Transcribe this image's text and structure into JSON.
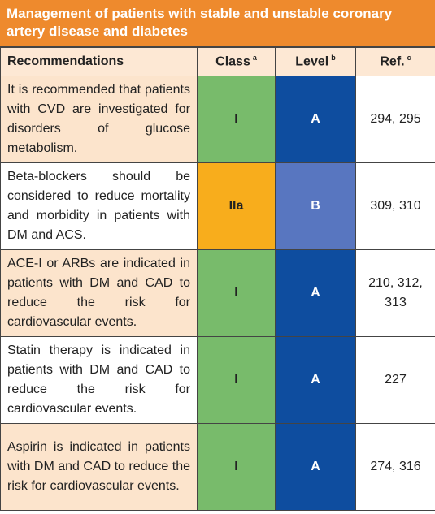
{
  "title": "Management of patients with stable and unstable coronary artery disease and diabetes",
  "table": {
    "header": [
      {
        "text": "Recommendations"
      },
      {
        "text": "Class",
        "note": "a"
      },
      {
        "text": "Level",
        "note": "b"
      },
      {
        "text": "Ref.",
        "note": "c"
      }
    ],
    "rows": [
      [
        "It is recommended that patients with CVD are investigated for disorders of glucose metabolism.",
        "I",
        "A",
        "294, 295"
      ],
      [
        "Beta-blockers should be considered to reduce mortality and morbidity in patients with DM and ACS.",
        "IIa",
        "B",
        "309, 310"
      ],
      [
        "ACE-I or ARBs are indicated in patients with DM and CAD to reduce the risk for cardiovascular events.",
        "I",
        "A",
        "210, 312, 313"
      ],
      [
        "Statin therapy is indicated in patients with DM and CAD to reduce the risk for cardiovascular events.",
        "I",
        "A",
        "227"
      ],
      [
        "Aspirin is indicated in patients with DM and CAD to reduce the risk for cardiovascular events.",
        "I",
        "A",
        "274, 316"
      ]
    ]
  }
}
